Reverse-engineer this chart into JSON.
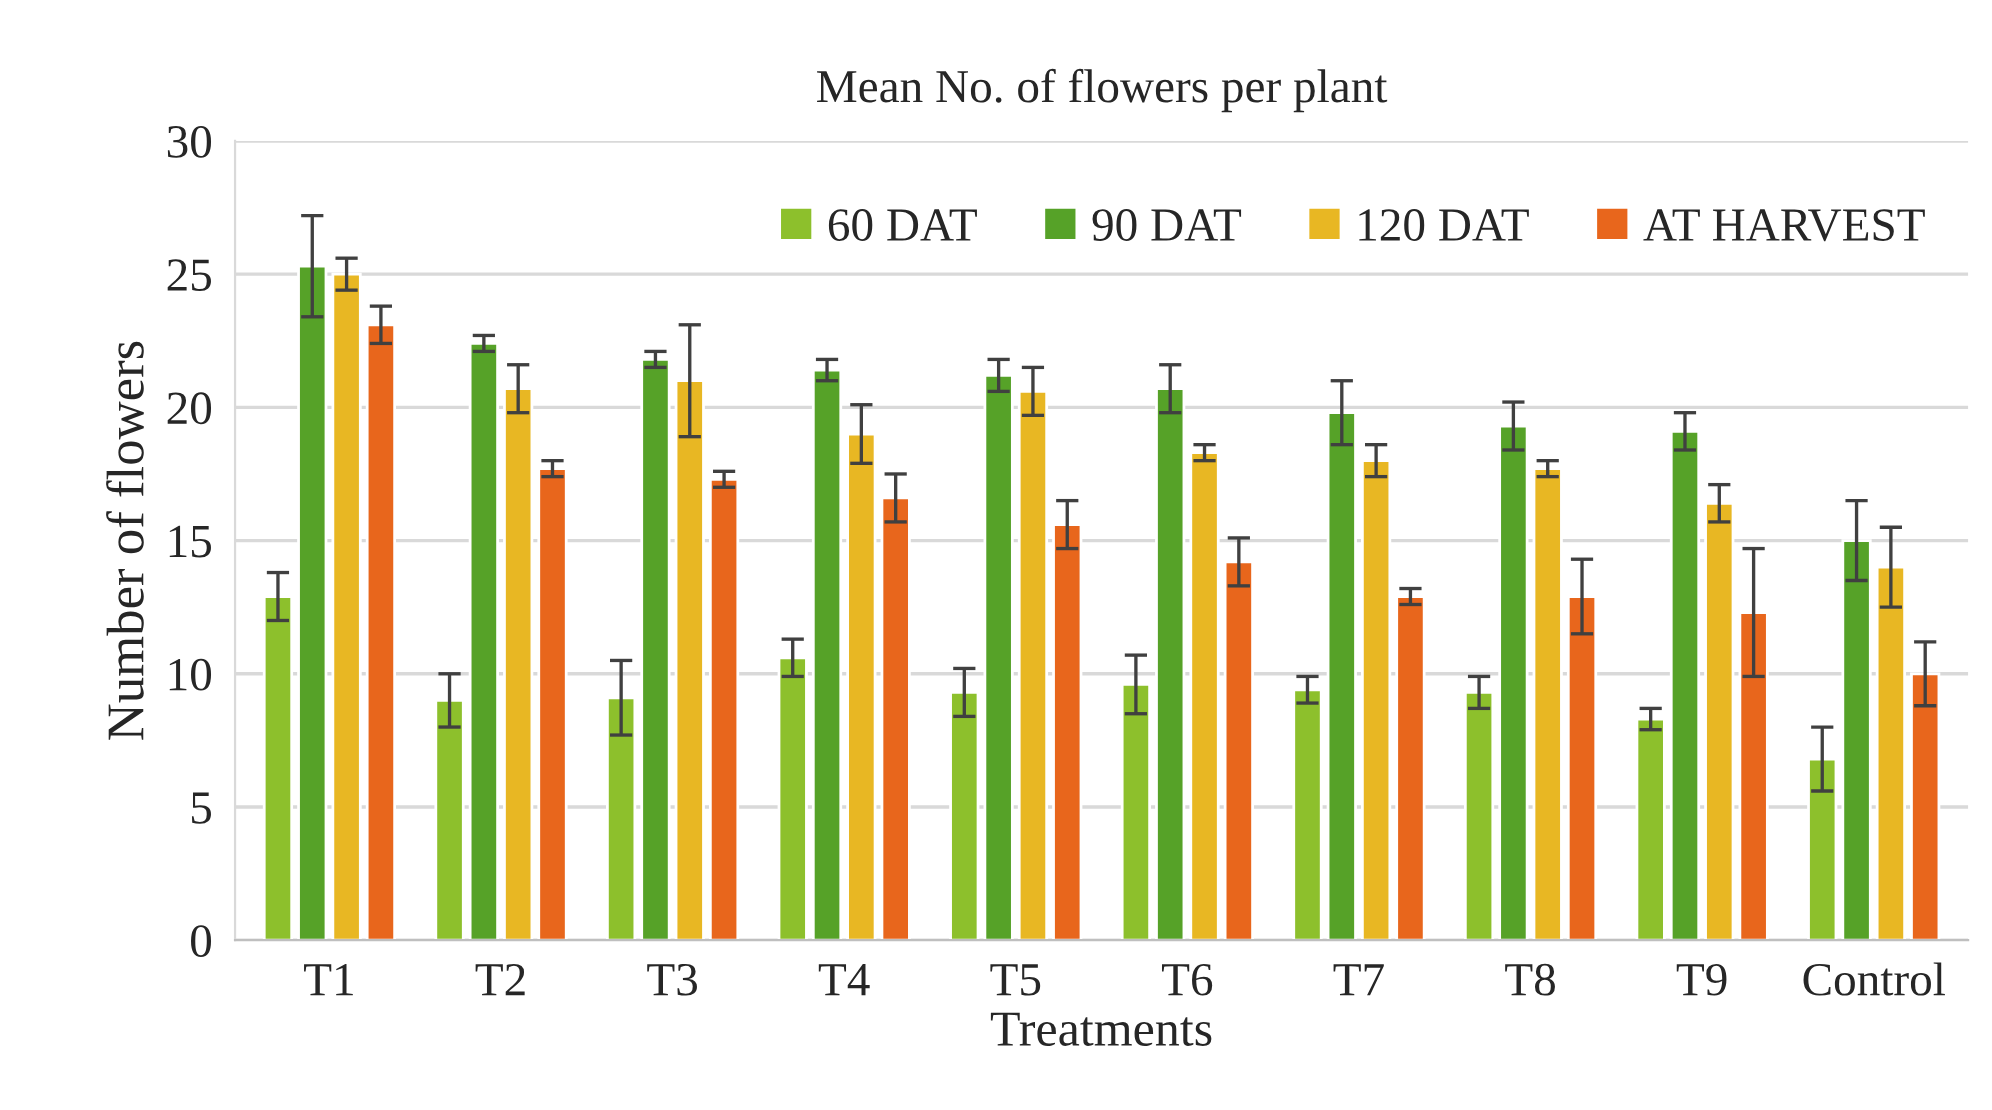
{
  "chart_data": {
    "type": "bar",
    "title": "Mean No. of flowers per plant",
    "xlabel": "Treatments",
    "ylabel": "Number of flowers",
    "categories": [
      "T1",
      "T2",
      "T3",
      "T4",
      "T5",
      "T6",
      "T7",
      "T8",
      "T9",
      "Control"
    ],
    "series": [
      {
        "name": "60 DAT",
        "color": "#8dc02c",
        "values": [
          12.9,
          9.0,
          9.1,
          10.6,
          9.3,
          9.6,
          9.4,
          9.3,
          8.3,
          6.8
        ],
        "errors": [
          0.9,
          1.0,
          1.4,
          0.7,
          0.9,
          1.1,
          0.5,
          0.6,
          0.4,
          1.2
        ]
      },
      {
        "name": "90 DAT",
        "color": "#56a228",
        "values": [
          25.3,
          22.4,
          21.8,
          21.4,
          21.2,
          20.7,
          19.8,
          19.3,
          19.1,
          15.0
        ],
        "errors": [
          1.9,
          0.3,
          0.3,
          0.4,
          0.6,
          0.9,
          1.2,
          0.9,
          0.7,
          1.5
        ]
      },
      {
        "name": "120 DAT",
        "color": "#e8b723",
        "values": [
          25.0,
          20.7,
          21.0,
          19.0,
          20.6,
          18.3,
          18.0,
          17.7,
          16.4,
          14.0
        ],
        "errors": [
          0.6,
          0.9,
          2.1,
          1.1,
          0.9,
          0.3,
          0.6,
          0.3,
          0.7,
          1.5
        ]
      },
      {
        "name": "AT HARVEST",
        "color": "#e8661c",
        "values": [
          23.1,
          17.7,
          17.3,
          16.6,
          15.6,
          14.2,
          12.9,
          12.9,
          12.3,
          10.0
        ],
        "errors": [
          0.7,
          0.3,
          0.3,
          0.9,
          0.9,
          0.9,
          0.3,
          1.4,
          2.4,
          1.2
        ]
      }
    ],
    "ylim": [
      0,
      30
    ],
    "yticks": [
      0,
      5,
      10,
      15,
      20,
      25,
      30
    ],
    "grid": "y",
    "legend": "top right"
  }
}
